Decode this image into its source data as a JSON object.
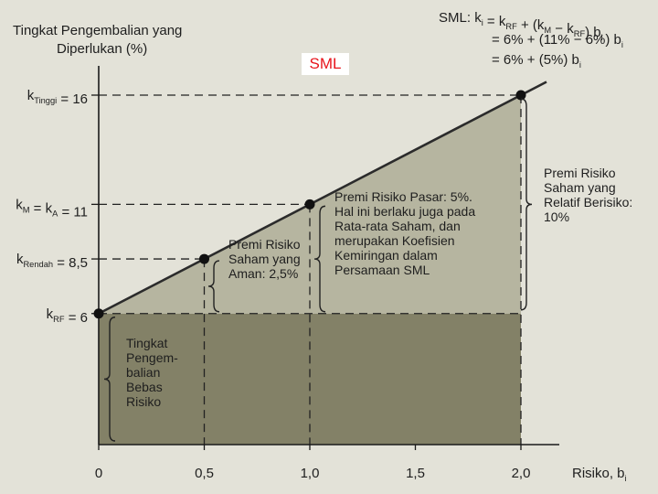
{
  "chart_data": {
    "type": "line",
    "title": "SML",
    "ylabel": [
      "Tingkat Pengembalian yang",
      "Diperlukan (%)"
    ],
    "xlabel": "Risiko, b",
    "xlabel_sub": "i",
    "xlim": [
      0,
      2.25
    ],
    "ylim": [
      0,
      18.5
    ],
    "x_ticks": [
      "0",
      "0,5",
      "1,0",
      "1,5",
      "2,0"
    ],
    "x_tick_values": [
      0,
      0.5,
      1.0,
      1.5,
      2.0
    ],
    "y_ticks": [
      {
        "value": 16,
        "main": "k",
        "sub": "Tinggi",
        "rest": " = 16"
      },
      {
        "value": 11,
        "main": "k",
        "sub": "M",
        "rest": " = k",
        "sub2": "A",
        "rest2": " = 11"
      },
      {
        "value": 8.5,
        "main": "k",
        "sub": "Rendah",
        "rest": " = 8,5"
      },
      {
        "value": 6,
        "main": "k",
        "sub": "RF",
        "rest": " = 6"
      }
    ],
    "line": {
      "x": [
        0,
        2.0
      ],
      "y": [
        6,
        16
      ],
      "slope": 5,
      "intercept": 6
    },
    "points": [
      {
        "x": 0,
        "y": 6
      },
      {
        "x": 0.5,
        "y": 8.5
      },
      {
        "x": 1.0,
        "y": 11
      },
      {
        "x": 2.0,
        "y": 16
      }
    ],
    "risk_free_rate": 6,
    "grid": false,
    "equation_lines": [
      {
        "prefix": "SML:",
        "text": "k",
        "sub1": "i",
        "mid": " = k",
        "sub2": "RF",
        "rest": " + (k",
        "sub3": "M",
        "rest2": " − k",
        "sub4": "RF",
        "rest3": ") b",
        "sub5": "i"
      },
      {
        "text": "= 6% + (11% − 6%) b",
        "sub": "i"
      },
      {
        "text": "= 6% + (5%) b",
        "sub": "i"
      }
    ],
    "annotations": {
      "risk_free": [
        "Tingkat",
        "Pengem-",
        "balian",
        "Bebas",
        "Risiko"
      ],
      "safe_premium": [
        "Premi Risiko",
        "Saham yang",
        "Aman: 2,5%"
      ],
      "market_premium": [
        "Premi Risiko Pasar: 5%.",
        "Hal ini berlaku juga pada",
        "Rata-rata Saham, dan",
        "merupakan Koefisien",
        "Kemiringan dalam",
        "Persamaan SML"
      ],
      "risky_premium": [
        "Premi Risiko",
        "Saham yang",
        "Relatif Berisiko:",
        "10%"
      ]
    },
    "colors": {
      "background": "#e3e2d8",
      "risk_free_region": "#838167",
      "premium_region": "#b6b5a0",
      "line": "#2b2b2b"
    }
  }
}
